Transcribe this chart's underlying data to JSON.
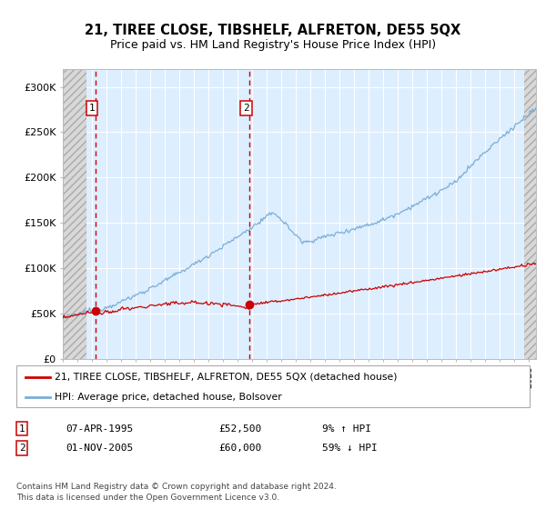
{
  "title": "21, TIREE CLOSE, TIBSHELF, ALFRETON, DE55 5QX",
  "subtitle": "Price paid vs. HM Land Registry's House Price Index (HPI)",
  "sale1_label": "07-APR-1995",
  "sale1_price": 52500,
  "sale1_price_str": "£52,500",
  "sale1_pct": "9% ↑ HPI",
  "sale1_year": 1995.25,
  "sale2_label": "01-NOV-2005",
  "sale2_price": 60000,
  "sale2_price_str": "£60,000",
  "sale2_pct": "59% ↓ HPI",
  "sale2_year": 2005.833,
  "hpi_color": "#7aaed6",
  "price_color": "#cc0000",
  "dot_color": "#cc0000",
  "vline_color": "#cc0000",
  "legend1": "21, TIREE CLOSE, TIBSHELF, ALFRETON, DE55 5QX (detached house)",
  "legend2": "HPI: Average price, detached house, Bolsover",
  "footer": "Contains HM Land Registry data © Crown copyright and database right 2024.\nThis data is licensed under the Open Government Licence v3.0.",
  "ylim_max": 320000,
  "year_start": 1993,
  "year_end": 2025.5,
  "bg_plot": "#ddeeff",
  "hatch_color": "#d0d0d0",
  "grid_color": "#ffffff",
  "yticks": [
    0,
    50000,
    100000,
    150000,
    200000,
    250000,
    300000
  ],
  "ylabels": [
    "£0",
    "£50K",
    "£100K",
    "£150K",
    "£200K",
    "£250K",
    "£300K"
  ]
}
